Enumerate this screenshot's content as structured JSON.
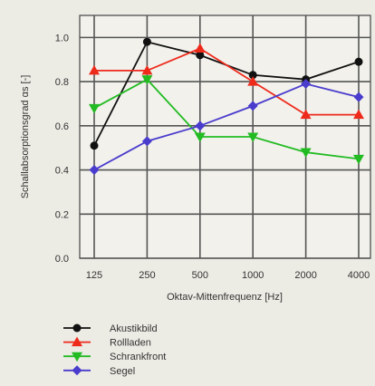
{
  "chart_data": {
    "type": "line",
    "title": "",
    "xlabel": "Oktav-Mittenfrequenz [Hz]",
    "ylabel": "Schallabsorptionsgrad αs [-]",
    "categories": [
      "125",
      "250",
      "500",
      "1000",
      "2000",
      "4000"
    ],
    "ylim": [
      0.0,
      1.1
    ],
    "yticks": [
      "0.0",
      "0.2",
      "0.4",
      "0.6",
      "0.8",
      "1.0"
    ],
    "grid": true,
    "legend_position": "bottom-left",
    "series": [
      {
        "name": "Akustikbild",
        "values": [
          0.51,
          0.98,
          0.92,
          0.83,
          0.81,
          0.89
        ],
        "color": "#111111",
        "marker": "circle"
      },
      {
        "name": "Rollladen",
        "values": [
          0.85,
          0.85,
          0.95,
          0.8,
          0.65,
          0.65
        ],
        "color": "#ee2a1b",
        "marker": "triangle-up"
      },
      {
        "name": "Schrankfront",
        "values": [
          0.68,
          0.81,
          0.55,
          0.55,
          0.48,
          0.45
        ],
        "color": "#22bb22",
        "marker": "triangle-down"
      },
      {
        "name": "Segel",
        "values": [
          0.4,
          0.53,
          0.6,
          0.69,
          0.79,
          0.73
        ],
        "color": "#4a3ccc",
        "marker": "diamond"
      }
    ]
  }
}
